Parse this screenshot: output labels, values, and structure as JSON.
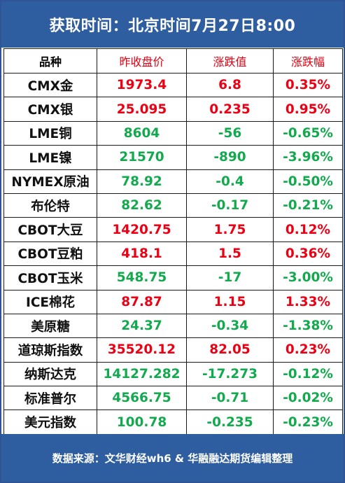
{
  "header": {
    "title": "获取时间：北京时间7月27日8:00"
  },
  "table": {
    "columns": [
      "品种",
      "昨收盘价",
      "涨跌值",
      "涨跌幅"
    ],
    "colors": {
      "up": "#ec0014",
      "down": "#13a94e",
      "header_red": "#e60012"
    },
    "rows": [
      {
        "name": "CMX金",
        "close": "1973.4",
        "change": "6.8",
        "pct": "0.35%",
        "dir": "up"
      },
      {
        "name": "CMX银",
        "close": "25.095",
        "change": "0.235",
        "pct": "0.95%",
        "dir": "up"
      },
      {
        "name": "LME铜",
        "close": "8604",
        "change": "-56",
        "pct": "-0.65%",
        "dir": "down"
      },
      {
        "name": "LME镍",
        "close": "21570",
        "change": "-890",
        "pct": "-3.96%",
        "dir": "down"
      },
      {
        "name": "NYMEX原油",
        "close": "78.92",
        "change": "-0.4",
        "pct": "-0.50%",
        "dir": "down"
      },
      {
        "name": "布伦特",
        "close": "82.62",
        "change": "-0.17",
        "pct": "-0.21%",
        "dir": "down"
      },
      {
        "name": "CBOT大豆",
        "close": "1420.75",
        "change": "1.75",
        "pct": "0.12%",
        "dir": "up"
      },
      {
        "name": "CBOT豆粕",
        "close": "418.1",
        "change": "1.5",
        "pct": "0.36%",
        "dir": "up"
      },
      {
        "name": "CBOT玉米",
        "close": "548.75",
        "change": "-17",
        "pct": "-3.00%",
        "dir": "down"
      },
      {
        "name": "ICE棉花",
        "close": "87.87",
        "change": "1.15",
        "pct": "1.33%",
        "dir": "up"
      },
      {
        "name": "美原糖",
        "close": "24.37",
        "change": "-0.34",
        "pct": "-1.38%",
        "dir": "down"
      },
      {
        "name": "道琼斯指数",
        "close": "35520.12",
        "change": "82.05",
        "pct": "0.23%",
        "dir": "up"
      },
      {
        "name": "纳斯达克",
        "close": "14127.282",
        "change": "-17.273",
        "pct": "-0.12%",
        "dir": "down"
      },
      {
        "name": "标准普尔",
        "close": "4566.75",
        "change": "-0.71",
        "pct": "-0.02%",
        "dir": "down"
      },
      {
        "name": "美元指数",
        "close": "100.78",
        "change": "-0.235",
        "pct": "-0.23%",
        "dir": "down"
      }
    ]
  },
  "footer": {
    "source": "数据来源：文华财经wh6 & 华融融达期货编辑整理"
  }
}
